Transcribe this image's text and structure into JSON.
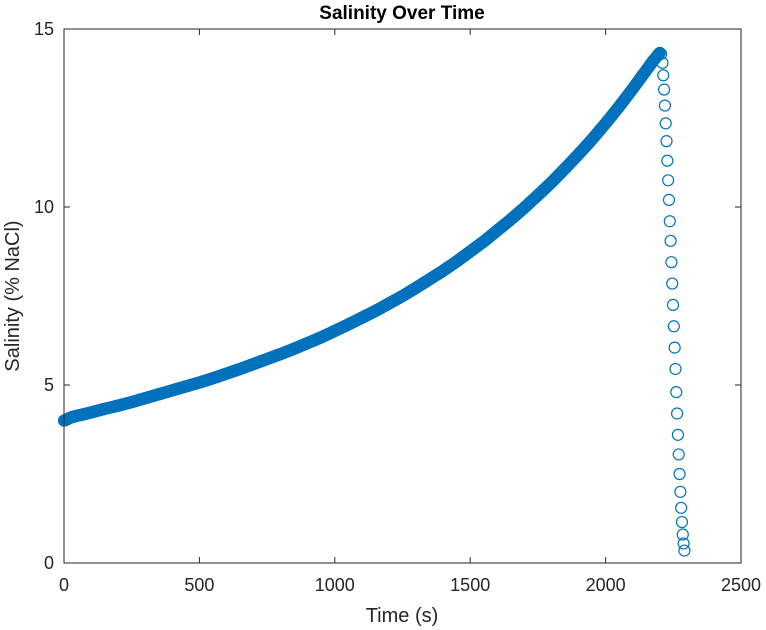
{
  "chart_data": {
    "type": "scatter",
    "title": "Salinity Over Time",
    "xlabel": "Time (s)",
    "ylabel": "Salinity (% NaCl)",
    "xlim": [
      0,
      2500
    ],
    "ylim": [
      0,
      15
    ],
    "xticks": [
      0,
      500,
      1000,
      1500,
      2000,
      2500
    ],
    "yticks": [
      0,
      5,
      10,
      15
    ],
    "x_tick_labels": [
      "0",
      "500",
      "1000",
      "1500",
      "2000",
      "2500"
    ],
    "y_tick_labels": [
      "0",
      "5",
      "10",
      "15"
    ],
    "grid": false,
    "marker": "open-circle",
    "color": "#0072BD",
    "series": [
      {
        "x": [
          0,
          10,
          20,
          30,
          40,
          50,
          75,
          100,
          150,
          200,
          250,
          300,
          350,
          400,
          450,
          500,
          550,
          600,
          650,
          700,
          750,
          800,
          850,
          900,
          950,
          1000,
          1050,
          1100,
          1150,
          1200,
          1250,
          1300,
          1350,
          1400,
          1450,
          1500,
          1550,
          1600,
          1650,
          1700,
          1750,
          1800,
          1850,
          1900,
          1950,
          2000,
          2050,
          2100,
          2150,
          2175,
          2200,
          2205,
          2210,
          2213,
          2216,
          2219,
          2222,
          2225,
          2228,
          2231,
          2234,
          2237,
          2240,
          2243,
          2246,
          2249,
          2252,
          2255,
          2258,
          2261,
          2264,
          2267,
          2270,
          2273,
          2276,
          2279,
          2282,
          2285,
          2288,
          2291
        ],
        "y": [
          4.0,
          4.03,
          4.07,
          4.1,
          4.12,
          4.14,
          4.18,
          4.23,
          4.33,
          4.42,
          4.52,
          4.63,
          4.74,
          4.85,
          4.96,
          5.07,
          5.19,
          5.32,
          5.45,
          5.59,
          5.73,
          5.87,
          6.02,
          6.18,
          6.34,
          6.52,
          6.7,
          6.89,
          7.08,
          7.29,
          7.5,
          7.73,
          7.97,
          8.21,
          8.47,
          8.75,
          9.03,
          9.34,
          9.65,
          9.98,
          10.33,
          10.69,
          11.08,
          11.48,
          11.9,
          12.35,
          12.82,
          13.32,
          13.84,
          14.1,
          14.33,
          14.3,
          14.05,
          13.7,
          13.3,
          12.85,
          12.35,
          11.85,
          11.3,
          10.75,
          10.2,
          9.6,
          9.05,
          8.45,
          7.85,
          7.25,
          6.65,
          6.05,
          5.45,
          4.8,
          4.2,
          3.6,
          3.05,
          2.5,
          2.0,
          1.55,
          1.15,
          0.8,
          0.55,
          0.35
        ]
      }
    ]
  }
}
